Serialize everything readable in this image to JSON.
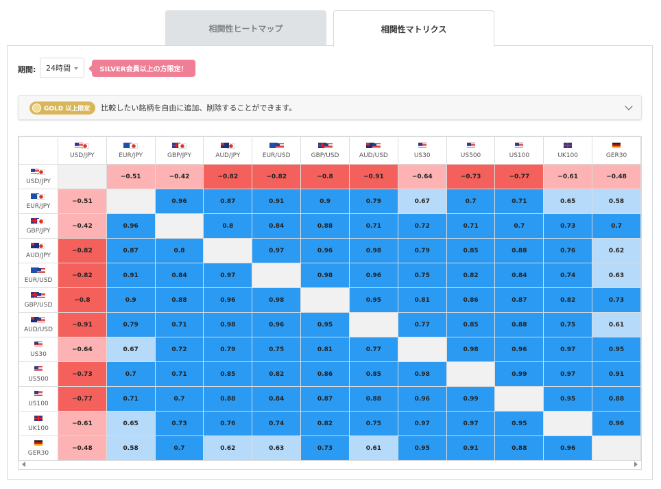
{
  "tabs": [
    {
      "label": "相関性ヒートマップ",
      "active": false
    },
    {
      "label": "相関性マトリクス",
      "active": true
    }
  ],
  "period": {
    "label": "期間:",
    "value": "24時間"
  },
  "promo": "SILVER会員以上の方限定！",
  "notice": {
    "badge": "GOLD 以上限定",
    "text": "比較したい銘柄を自由に追加、削除することができます。"
  },
  "colors": {
    "strong_pos": "#2b9af3",
    "weak_pos": "#b6dafa",
    "strong_neg": "#f4605b",
    "weak_neg": "#fdb3b3",
    "diagonal": "#f1f1f1"
  },
  "symbols": [
    {
      "label": "USD/JPY",
      "flags": [
        "us",
        "jp"
      ]
    },
    {
      "label": "EUR/JPY",
      "flags": [
        "eu",
        "jp"
      ]
    },
    {
      "label": "GBP/JPY",
      "flags": [
        "gb",
        "jp"
      ]
    },
    {
      "label": "AUD/JPY",
      "flags": [
        "au",
        "jp"
      ]
    },
    {
      "label": "EUR/USD",
      "flags": [
        "eu",
        "us"
      ]
    },
    {
      "label": "GBP/USD",
      "flags": [
        "gb",
        "us"
      ]
    },
    {
      "label": "AUD/USD",
      "flags": [
        "au",
        "us"
      ]
    },
    {
      "label": "US30",
      "flags": [
        "us"
      ]
    },
    {
      "label": "US500",
      "flags": [
        "us"
      ]
    },
    {
      "label": "US100",
      "flags": [
        "us"
      ]
    },
    {
      "label": "UK100",
      "flags": [
        "gb"
      ]
    },
    {
      "label": "GER30",
      "flags": [
        "de"
      ]
    }
  ],
  "matrix": [
    [
      null,
      "−0.51",
      "−0.42",
      "−0.82",
      "−0.82",
      "−0.8",
      "−0.91",
      "−0.64",
      "−0.73",
      "−0.77",
      "−0.61",
      "−0.48"
    ],
    [
      "−0.51",
      null,
      "0.96",
      "0.87",
      "0.91",
      "0.9",
      "0.79",
      "0.67",
      "0.7",
      "0.71",
      "0.65",
      "0.58"
    ],
    [
      "−0.42",
      "0.96",
      null,
      "0.8",
      "0.84",
      "0.88",
      "0.71",
      "0.72",
      "0.71",
      "0.7",
      "0.73",
      "0.7"
    ],
    [
      "−0.82",
      "0.87",
      "0.8",
      null,
      "0.97",
      "0.96",
      "0.98",
      "0.79",
      "0.85",
      "0.88",
      "0.76",
      "0.62"
    ],
    [
      "−0.82",
      "0.91",
      "0.84",
      "0.97",
      null,
      "0.98",
      "0.96",
      "0.75",
      "0.82",
      "0.84",
      "0.74",
      "0.63"
    ],
    [
      "−0.8",
      "0.9",
      "0.88",
      "0.96",
      "0.98",
      null,
      "0.95",
      "0.81",
      "0.86",
      "0.87",
      "0.82",
      "0.73"
    ],
    [
      "−0.91",
      "0.79",
      "0.71",
      "0.98",
      "0.96",
      "0.95",
      null,
      "0.77",
      "0.85",
      "0.88",
      "0.75",
      "0.61"
    ],
    [
      "−0.64",
      "0.67",
      "0.72",
      "0.79",
      "0.75",
      "0.81",
      "0.77",
      null,
      "0.98",
      "0.96",
      "0.97",
      "0.95"
    ],
    [
      "−0.73",
      "0.7",
      "0.71",
      "0.85",
      "0.82",
      "0.86",
      "0.85",
      "0.98",
      null,
      "0.99",
      "0.97",
      "0.91"
    ],
    [
      "−0.77",
      "0.71",
      "0.7",
      "0.88",
      "0.84",
      "0.87",
      "0.88",
      "0.96",
      "0.99",
      null,
      "0.95",
      "0.88"
    ],
    [
      "−0.61",
      "0.65",
      "0.73",
      "0.76",
      "0.74",
      "0.82",
      "0.75",
      "0.97",
      "0.97",
      "0.95",
      null,
      "0.96"
    ],
    [
      "−0.48",
      "0.58",
      "0.7",
      "0.62",
      "0.63",
      "0.73",
      "0.61",
      "0.95",
      "0.91",
      "0.88",
      "0.96",
      null
    ]
  ]
}
